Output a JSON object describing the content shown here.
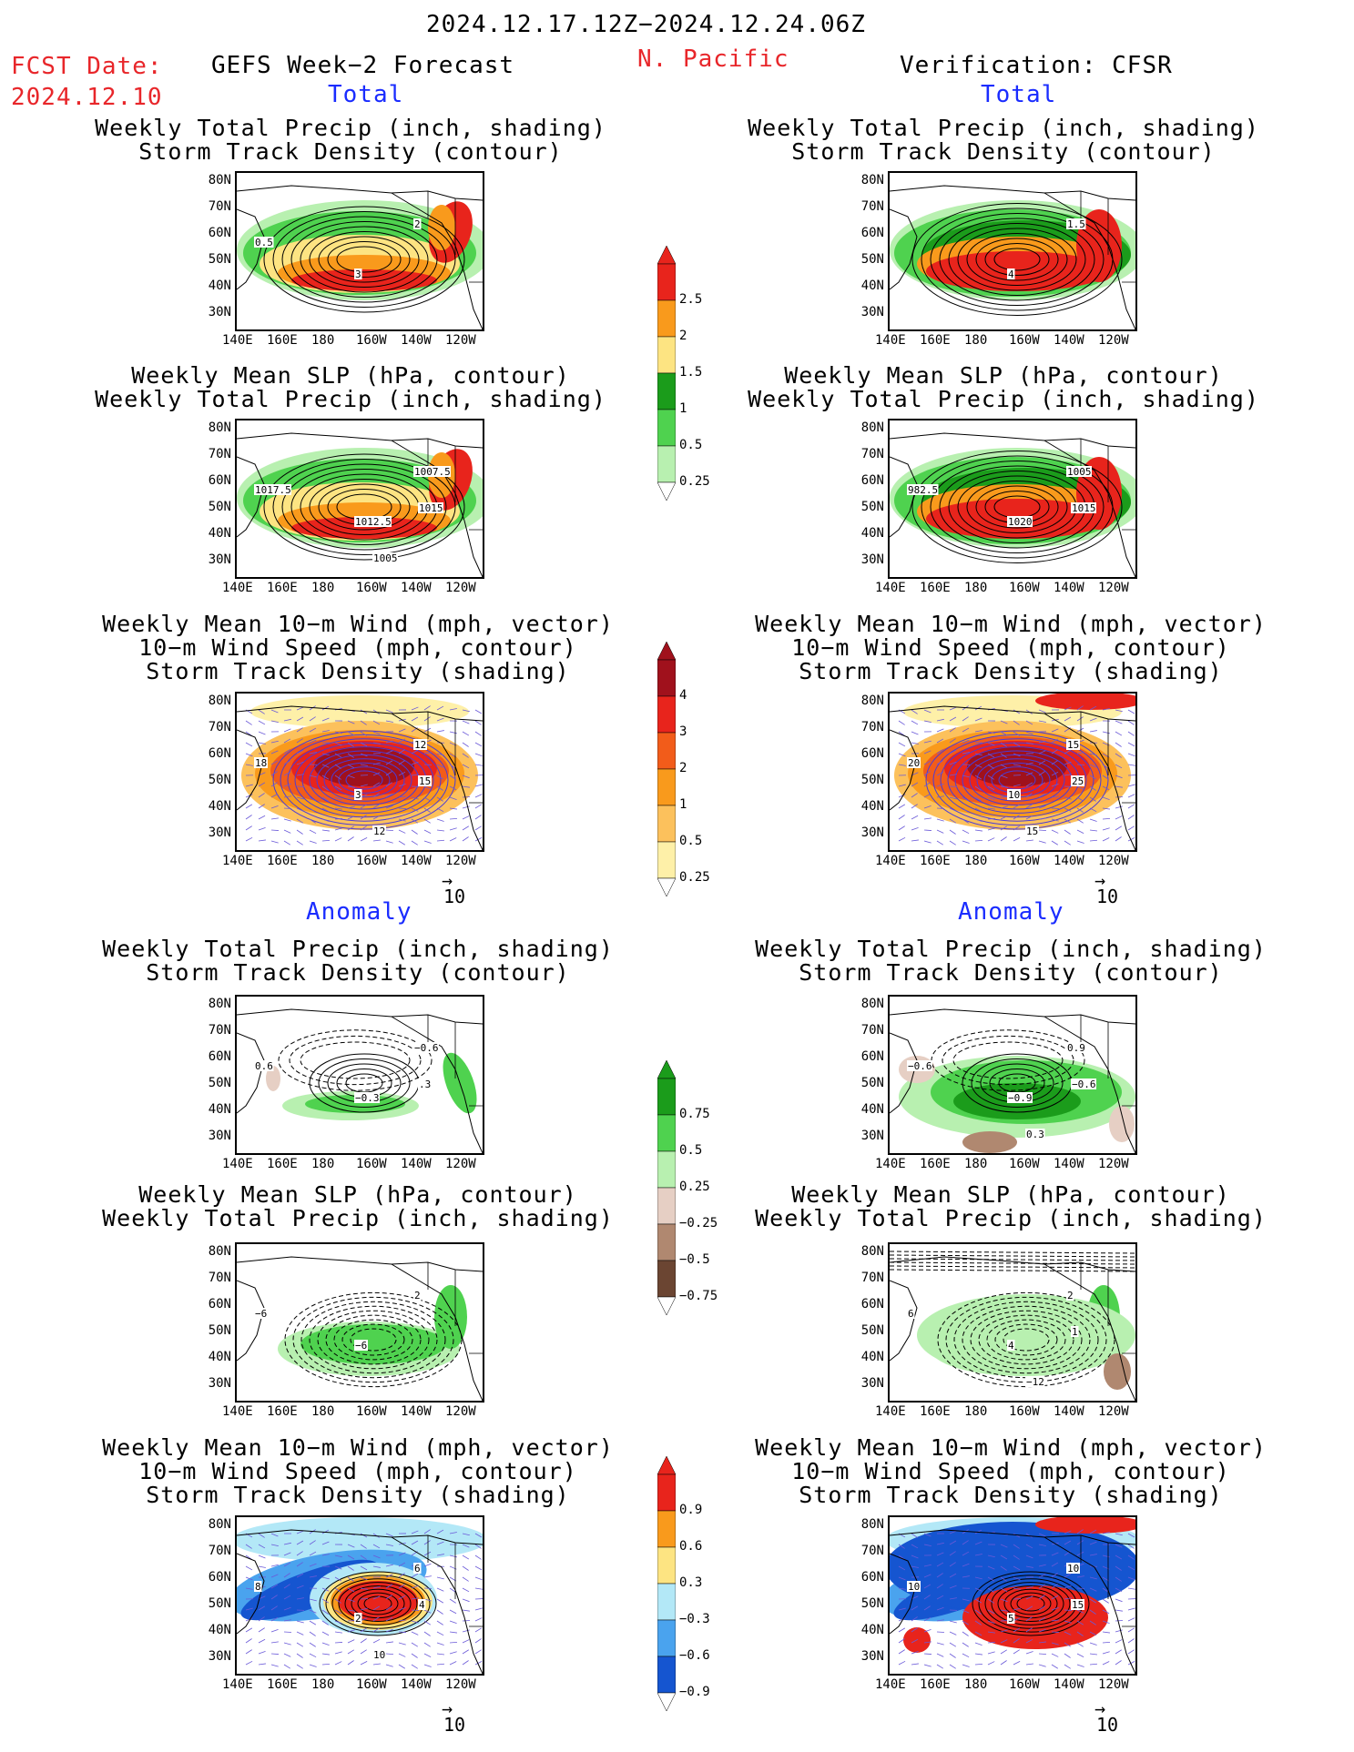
{
  "header": {
    "date_range": "2024.12.17.12Z−2024.12.24.06Z",
    "fcst_label": "FCST Date:",
    "fcst_date": "2024.12.10",
    "forecast_title": "GEFS Week−2 Forecast",
    "region": "N. Pacific",
    "verification_title": "Verification: CFSR"
  },
  "sections": {
    "total": "Total",
    "anomaly": "Anomaly"
  },
  "titles": {
    "precip_storm": [
      "Weekly Total Precip (inch, shading)",
      "Storm Track Density (contour)"
    ],
    "slp_precip": [
      "Weekly Mean SLP (hPa, contour)",
      "Weekly Total Precip (inch, shading)"
    ],
    "wind_storm": [
      "Weekly Mean 10−m Wind (mph, vector)",
      "10−m Wind Speed (mph, contour)",
      "Storm Track Density (shading)"
    ]
  },
  "axes": {
    "lat_ticks": [
      "80N",
      "70N",
      "60N",
      "50N",
      "40N",
      "30N"
    ],
    "lon_ticks": [
      "140E",
      "160E",
      "180",
      "160W",
      "140W",
      "120W"
    ]
  },
  "vector_ref": "10",
  "colorbars": {
    "precip_total": {
      "labels": [
        "2.5",
        "2",
        "1.5",
        "1",
        "0.5",
        "0.25"
      ],
      "colors": [
        "#e8241c",
        "#f99a1c",
        "#fde482",
        "#1b9c1b",
        "#4fd24f",
        "#b8f0b0"
      ]
    },
    "storm_total": {
      "labels": [
        "4",
        "3",
        "2",
        "1",
        "0.5",
        "0.25"
      ],
      "colors": [
        "#a0111c",
        "#e8241c",
        "#f25c1a",
        "#f99a1c",
        "#fcc15c",
        "#fef0a8"
      ]
    },
    "precip_anom": {
      "labels": [
        "0.75",
        "0.5",
        "0.25",
        "−0.25",
        "−0.5",
        "−0.75"
      ],
      "colors": [
        "#1b9c1b",
        "#4fd24f",
        "#b8f0b0",
        "#e6cfc4",
        "#b08870",
        "#6b4532"
      ]
    },
    "storm_anom": {
      "labels": [
        "0.9",
        "0.6",
        "0.3",
        "−0.3",
        "−0.6",
        "−0.9"
      ],
      "colors": [
        "#e8241c",
        "#f99a1c",
        "#fde482",
        "#b3e8f7",
        "#4aa3ee",
        "#1555d0"
      ]
    }
  },
  "panel_labels": {
    "l1": [
      "3",
      "2",
      "0.5"
    ],
    "r1": [
      "4",
      "1.5"
    ],
    "l2": [
      "1012.5",
      "1007.5",
      "1017.5",
      "1015",
      "1005"
    ],
    "r2": [
      "1020",
      "1005",
      "982.5",
      "1015"
    ],
    "l3": [
      "3",
      "12",
      "18",
      "15",
      "12"
    ],
    "r3": [
      "10",
      "15",
      "20",
      "25",
      "15"
    ],
    "l4": [
      "−0.3",
      "−0.6",
      "0.6",
      ".3"
    ],
    "r4": [
      "−0.9",
      "0.9",
      "−0.6",
      "−0.6",
      "0.3"
    ],
    "l5": [
      "−6",
      "2",
      "−6"
    ],
    "r5": [
      "4",
      "2",
      "6",
      "1",
      "−12"
    ],
    "l6": [
      "2",
      "6",
      "8",
      "4",
      "10"
    ],
    "r6": [
      "5",
      "10",
      "10",
      "15"
    ]
  }
}
